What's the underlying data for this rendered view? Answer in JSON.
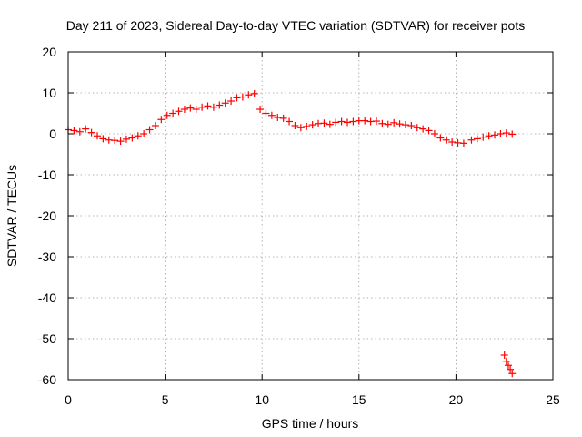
{
  "chart_data": {
    "type": "scatter",
    "title": "Day 211 of 2023, Sidereal Day-to-day VTEC variation (SDTVAR) for receiver pots",
    "xlabel": "GPS time / hours",
    "ylabel": "SDTVAR / TECUs",
    "xlim": [
      0,
      25
    ],
    "ylim": [
      -60,
      20
    ],
    "xticks": [
      0,
      5,
      10,
      15,
      20,
      25
    ],
    "yticks": [
      -60,
      -50,
      -40,
      -30,
      -20,
      -10,
      0,
      10,
      20
    ],
    "grid": true,
    "marker": "plus",
    "color": "#ff0000",
    "series": [
      {
        "name": "SDTVAR",
        "points": [
          [
            0.0,
            1.0
          ],
          [
            0.3,
            0.8
          ],
          [
            0.6,
            0.5
          ],
          [
            0.9,
            1.2
          ],
          [
            1.2,
            0.3
          ],
          [
            1.5,
            -0.5
          ],
          [
            1.8,
            -1.2
          ],
          [
            2.1,
            -1.5
          ],
          [
            2.4,
            -1.6
          ],
          [
            2.7,
            -1.8
          ],
          [
            3.0,
            -1.3
          ],
          [
            3.3,
            -1.0
          ],
          [
            3.6,
            -0.5
          ],
          [
            3.9,
            0.0
          ],
          [
            4.2,
            1.0
          ],
          [
            4.5,
            2.0
          ],
          [
            4.8,
            3.5
          ],
          [
            5.1,
            4.5
          ],
          [
            5.4,
            5.0
          ],
          [
            5.7,
            5.5
          ],
          [
            6.0,
            6.0
          ],
          [
            6.3,
            6.3
          ],
          [
            6.6,
            6.0
          ],
          [
            6.9,
            6.5
          ],
          [
            7.2,
            6.8
          ],
          [
            7.5,
            6.5
          ],
          [
            7.8,
            7.0
          ],
          [
            8.1,
            7.5
          ],
          [
            8.4,
            8.0
          ],
          [
            8.7,
            8.8
          ],
          [
            9.0,
            9.0
          ],
          [
            9.3,
            9.5
          ],
          [
            9.6,
            9.8
          ],
          [
            9.9,
            6.0
          ],
          [
            10.2,
            5.0
          ],
          [
            10.5,
            4.5
          ],
          [
            10.8,
            4.0
          ],
          [
            11.1,
            3.8
          ],
          [
            11.4,
            3.0
          ],
          [
            11.7,
            2.0
          ],
          [
            12.0,
            1.5
          ],
          [
            12.3,
            1.8
          ],
          [
            12.6,
            2.2
          ],
          [
            12.9,
            2.5
          ],
          [
            13.2,
            2.6
          ],
          [
            13.5,
            2.3
          ],
          [
            13.8,
            2.8
          ],
          [
            14.1,
            3.0
          ],
          [
            14.4,
            2.8
          ],
          [
            14.7,
            3.0
          ],
          [
            15.0,
            3.2
          ],
          [
            15.3,
            3.2
          ],
          [
            15.6,
            3.0
          ],
          [
            15.9,
            3.1
          ],
          [
            16.2,
            2.5
          ],
          [
            16.5,
            2.3
          ],
          [
            16.8,
            2.7
          ],
          [
            17.1,
            2.4
          ],
          [
            17.4,
            2.2
          ],
          [
            17.7,
            2.0
          ],
          [
            18.0,
            1.5
          ],
          [
            18.3,
            1.2
          ],
          [
            18.6,
            0.8
          ],
          [
            18.9,
            0.0
          ],
          [
            19.2,
            -1.0
          ],
          [
            19.5,
            -1.5
          ],
          [
            19.8,
            -2.0
          ],
          [
            20.1,
            -2.2
          ],
          [
            20.4,
            -2.3
          ],
          [
            20.8,
            -1.5
          ],
          [
            21.1,
            -1.2
          ],
          [
            21.4,
            -0.8
          ],
          [
            21.7,
            -0.5
          ],
          [
            22.0,
            -0.3
          ],
          [
            22.3,
            0.0
          ],
          [
            22.6,
            0.2
          ],
          [
            22.9,
            -0.1
          ],
          [
            22.5,
            -54.0
          ],
          [
            22.6,
            -55.5
          ],
          [
            22.7,
            -56.5
          ],
          [
            22.8,
            -57.5
          ],
          [
            22.9,
            -58.5
          ]
        ]
      }
    ]
  }
}
